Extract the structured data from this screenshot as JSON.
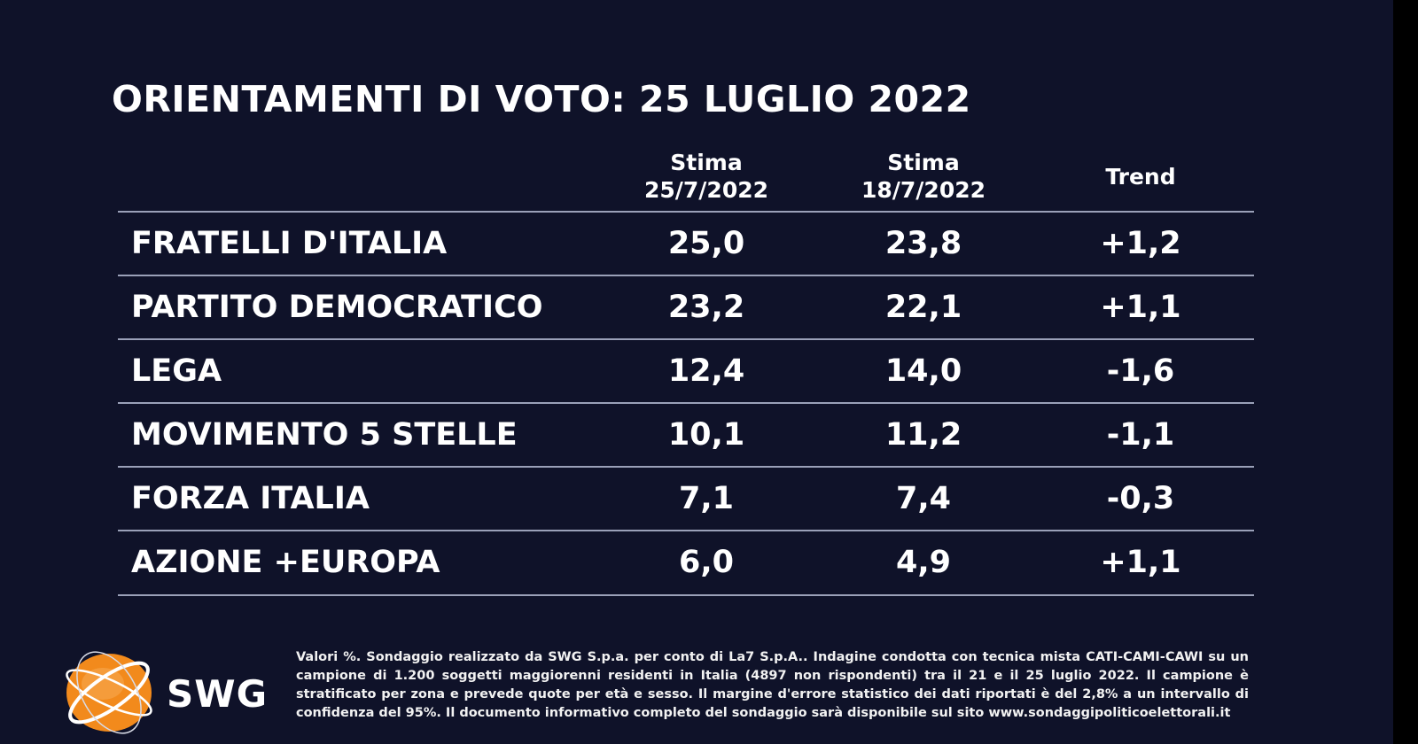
{
  "colors": {
    "background": "#0f1229",
    "text": "#ffffff",
    "rule": "#9aa0b8",
    "logo_orange": "#f28a1c",
    "logo_ring": "#ffffff"
  },
  "title": "ORIENTAMENTI DI VOTO: 25 LUGLIO 2022",
  "chart_data": {
    "type": "table",
    "title": "ORIENTAMENTI DI VOTO: 25 LUGLIO 2022",
    "columns": [
      {
        "line1": "Stima",
        "line2": "25/7/2022"
      },
      {
        "line1": "Stima",
        "line2": "18/7/2022"
      },
      {
        "line1": "Trend",
        "line2": ""
      }
    ],
    "rows": [
      {
        "party": "FRATELLI D'ITALIA",
        "stima_25_7": "25,0",
        "stima_18_7": "23,8",
        "trend": "+1,2"
      },
      {
        "party": "PARTITO DEMOCRATICO",
        "stima_25_7": "23,2",
        "stima_18_7": "22,1",
        "trend": "+1,1"
      },
      {
        "party": "LEGA",
        "stima_25_7": "12,4",
        "stima_18_7": "14,0",
        "trend": "-1,6"
      },
      {
        "party": "MOVIMENTO 5 STELLE",
        "stima_25_7": "10,1",
        "stima_18_7": "11,2",
        "trend": "-1,1"
      },
      {
        "party": "FORZA ITALIA",
        "stima_25_7": "7,1",
        "stima_18_7": "7,4",
        "trend": "-0,3"
      },
      {
        "party": "AZIONE +EUROPA",
        "stima_25_7": "6,0",
        "stima_18_7": "4,9",
        "trend": "+1,1"
      }
    ]
  },
  "logo": {
    "text": "SWG",
    "icon": "swg-globe-icon"
  },
  "footnote": "Valori %. Sondaggio realizzato da SWG S.p.a. per conto di La7 S.p.A.. Indagine condotta con tecnica mista CATI-CAMI-CAWI su un campione di 1.200 soggetti maggiorenni residenti in Italia (4897 non rispondenti) tra il 21 e il 25 luglio 2022. Il campione è stratificato per zona e prevede quote per età e sesso. Il margine d'errore statistico dei dati riportati è del 2,8% a un intervallo di confidenza del 95%. Il documento informativo completo del sondaggio sarà disponibile sul sito www.sondaggipoliticoelettorali.it"
}
